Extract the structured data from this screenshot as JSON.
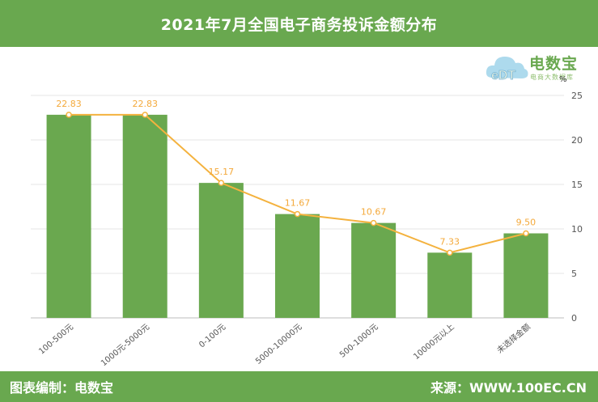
{
  "header": {
    "title": "2021年7月全国电子商务投诉金额分布"
  },
  "footer": {
    "left": "图表编制：电数宝",
    "right": "来源：WWW.100EC.CN"
  },
  "logo": {
    "name": "电数宝",
    "tagline": "电商大数据库",
    "mark": "eDT"
  },
  "chart_data": {
    "type": "bar",
    "title": "2021年7月全国电子商务投诉金额分布",
    "unit": "%",
    "categories": [
      "100-500元",
      "1000元-5000元",
      "0-100元",
      "5000-10000元",
      "500-1000元",
      "10000元以上",
      "未选择金额"
    ],
    "series": [
      {
        "values": [
          22.83,
          22.83,
          15.17,
          11.67,
          10.67,
          7.33,
          9.5
        ],
        "labels": [
          "22.83",
          "22.83",
          "15.17",
          "11.67",
          "10.67",
          "7.33",
          "9.50"
        ]
      }
    ],
    "overlay_line": {
      "values": [
        22.83,
        22.83,
        15.17,
        11.67,
        10.67,
        7.33,
        9.5
      ]
    },
    "y_axis": {
      "position": "right",
      "min": 0,
      "max": 25,
      "ticks": [
        0,
        5,
        10,
        15,
        20,
        25
      ]
    },
    "grid": true,
    "colors": {
      "bar": "#6aa84f",
      "line": "#f4b23e",
      "label": "#f4a93a",
      "grid": "#e6e6e6",
      "axis_text": "#555555"
    }
  }
}
